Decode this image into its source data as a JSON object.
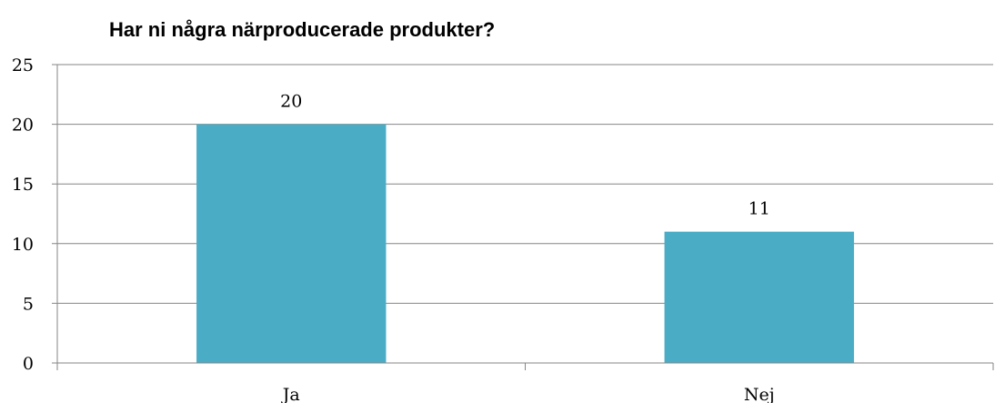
{
  "chart_data": {
    "type": "bar",
    "title": "Har ni några närproducerade produkter?",
    "categories": [
      "Ja",
      "Nej"
    ],
    "values": [
      20,
      11
    ],
    "data_labels": [
      "20",
      "11"
    ],
    "ylim": [
      0,
      25
    ],
    "yticks": [
      "0",
      "5",
      "10",
      "15",
      "20",
      "25"
    ],
    "xlabel": "",
    "ylabel": "",
    "grid": true,
    "legend": "none",
    "bar_color": "#4bacc6",
    "gridline_color": "#868686"
  }
}
